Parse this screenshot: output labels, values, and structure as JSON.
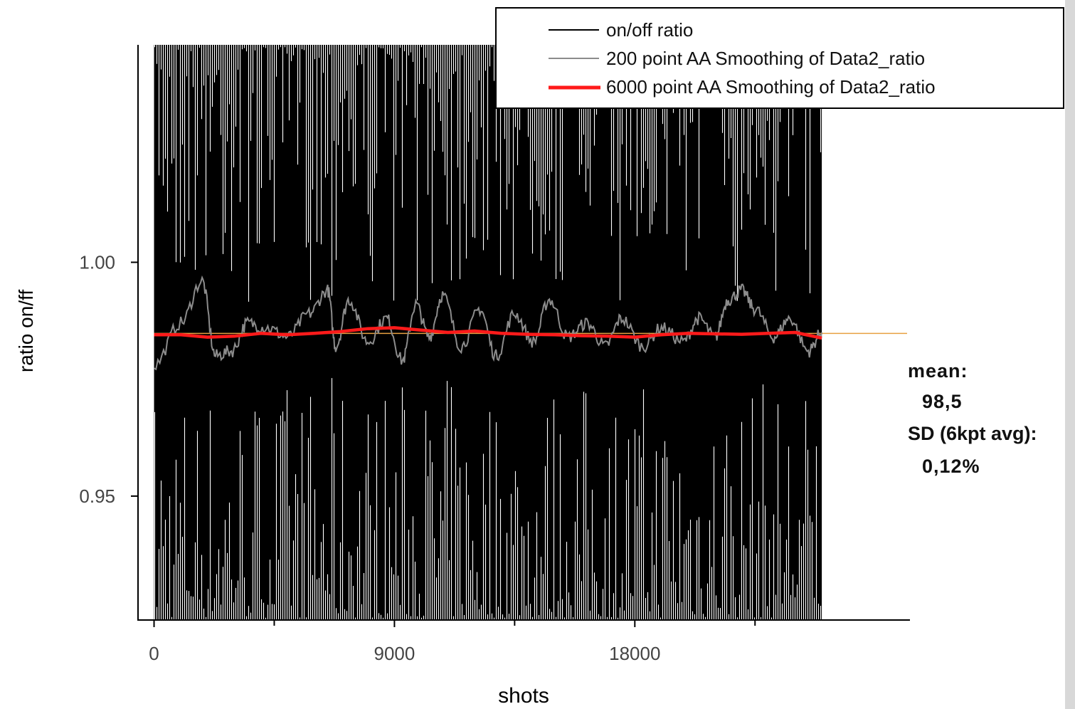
{
  "chart_data": {
    "type": "line",
    "xlabel": "shots",
    "ylabel": "ratio on/ff",
    "xlim": [
      -600,
      28300
    ],
    "ylim": [
      0.9235,
      1.0465
    ],
    "x_ticks": [
      0,
      9000,
      18000
    ],
    "x_tick_labels": [
      "0",
      "9000",
      "18000"
    ],
    "x_minor_ticks": [
      4500,
      13500,
      22500
    ],
    "y_ticks": [
      0.95,
      1.0
    ],
    "y_tick_labels": [
      "0.95",
      "1.00"
    ],
    "x_range": [
      0,
      25000
    ],
    "series": [
      {
        "name": "on/off ratio",
        "color": "#000000",
        "style": "dense noisy trace",
        "mean": 0.985,
        "band_top": 1.046,
        "band_bottom": 0.924
      },
      {
        "name": "200 point AA Smoothing of Data2_ratio",
        "color": "#8c8c8c",
        "x": [
          0,
          1000,
          1800,
          2300,
          2900,
          3500,
          4200,
          5000,
          5800,
          6500,
          6800,
          7300,
          8000,
          8700,
          9300,
          9800,
          10300,
          10800,
          11500,
          12200,
          12800,
          13500,
          14200,
          14800,
          15500,
          16200,
          16900,
          17500,
          18300,
          19000,
          19800,
          20400,
          21000,
          21500,
          22000,
          22500,
          23200,
          23800,
          24500,
          25000
        ],
        "values": [
          0.978,
          0.987,
          0.996,
          0.98,
          0.981,
          0.987,
          0.986,
          0.984,
          0.989,
          0.994,
          0.982,
          0.992,
          0.983,
          0.988,
          0.979,
          0.991,
          0.984,
          0.993,
          0.982,
          0.99,
          0.98,
          0.989,
          0.983,
          0.992,
          0.984,
          0.987,
          0.982,
          0.988,
          0.982,
          0.986,
          0.983,
          0.988,
          0.984,
          0.992,
          0.994,
          0.99,
          0.984,
          0.988,
          0.981,
          0.985
        ]
      },
      {
        "name": "6000 point AA Smoothing of Data2_ratio",
        "color": "#ff1a1a",
        "x": [
          0,
          1000,
          2000,
          3000,
          4000,
          5000,
          6000,
          7000,
          8000,
          9000,
          10000,
          11000,
          12000,
          13000,
          14000,
          15000,
          16000,
          17000,
          18000,
          19000,
          20000,
          21000,
          22000,
          23000,
          24000,
          25000
        ],
        "values": [
          0.9845,
          0.9845,
          0.984,
          0.9842,
          0.9848,
          0.9845,
          0.9848,
          0.9852,
          0.9858,
          0.986,
          0.9855,
          0.985,
          0.9853,
          0.9848,
          0.9846,
          0.9845,
          0.9843,
          0.9842,
          0.984,
          0.9845,
          0.9848,
          0.9847,
          0.9846,
          0.9848,
          0.985,
          0.9838
        ]
      }
    ],
    "reference_line": {
      "y": 0.9848,
      "color": "#e8a040"
    },
    "legend_position": "top-right",
    "annotation": {
      "mean_label": "mean:",
      "mean_value": "98,5",
      "sd_label": "SD (6kpt avg):",
      "sd_value": "0,12%"
    }
  }
}
